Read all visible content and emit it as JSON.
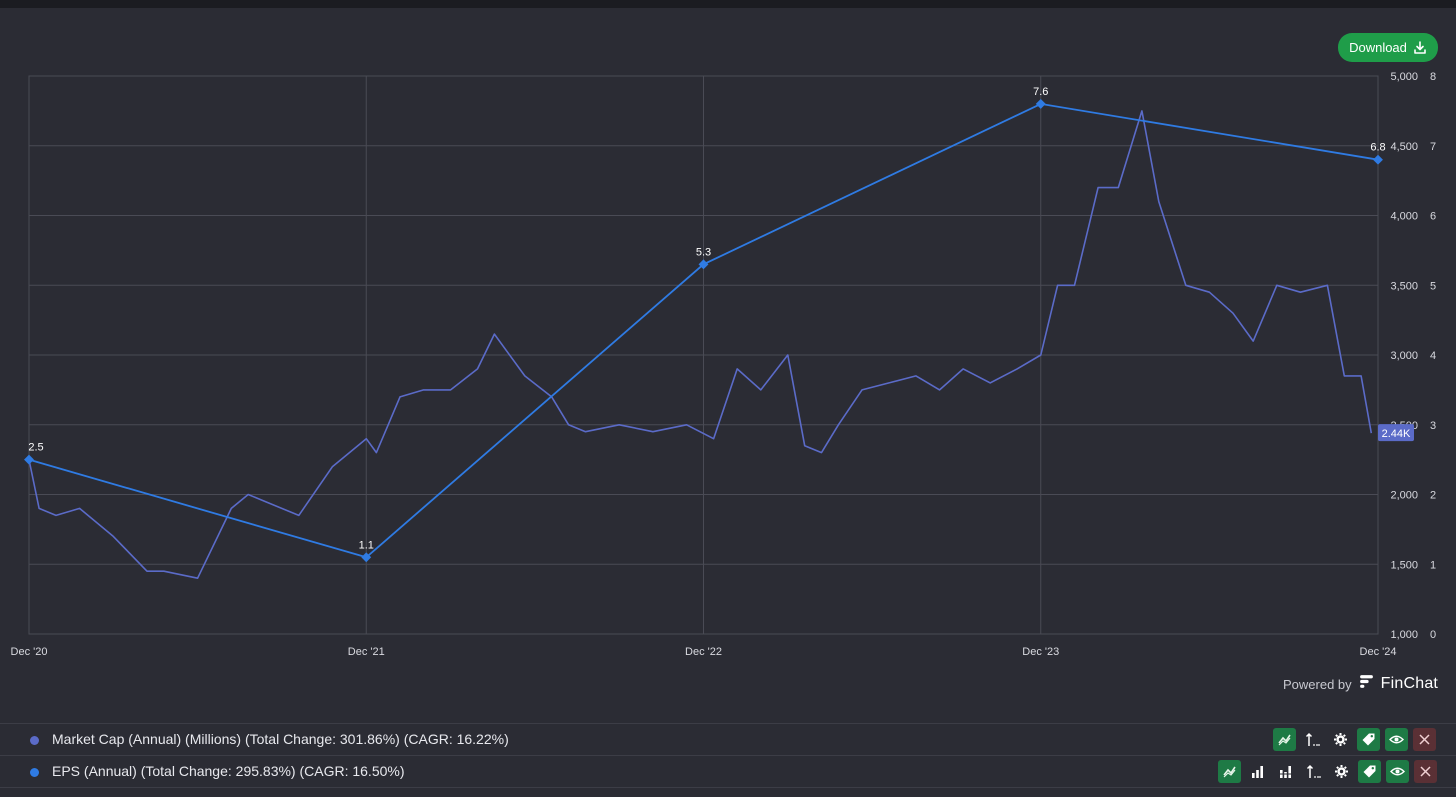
{
  "toolbar": {
    "download_label": "Download"
  },
  "chart_data": {
    "type": "line",
    "x_ticks": [
      "Dec '20",
      "Dec '21",
      "Dec '22",
      "Dec '23",
      "Dec '24"
    ],
    "y_left_range": [
      1000,
      5000
    ],
    "y_left_ticks": [
      "1,000",
      "1,500",
      "2,000",
      "2,500",
      "3,000",
      "3,500",
      "4,000",
      "4,500",
      "5,000"
    ],
    "y_right_range": [
      0,
      8
    ],
    "y_right_ticks": [
      "0",
      "1",
      "2",
      "3",
      "4",
      "5",
      "6",
      "7",
      "8"
    ],
    "grid": true,
    "series": [
      {
        "name": "Market Cap (Annual) (Millions) (Total Change: 301.86%) (CAGR: 16.22%)",
        "axis": "left",
        "color": "#5b6bc8",
        "last_value_label": "2.44K",
        "x": [
          2020.95,
          2020.98,
          2021.03,
          2021.1,
          2021.2,
          2021.3,
          2021.35,
          2021.45,
          2021.55,
          2021.6,
          2021.65,
          2021.75,
          2021.85,
          2021.95,
          2021.98,
          2022.05,
          2022.12,
          2022.2,
          2022.28,
          2022.33,
          2022.42,
          2022.5,
          2022.55,
          2022.6,
          2022.7,
          2022.8,
          2022.9,
          2022.98,
          2023.05,
          2023.12,
          2023.2,
          2023.25,
          2023.3,
          2023.35,
          2023.42,
          2023.5,
          2023.58,
          2023.65,
          2023.72,
          2023.8,
          2023.88,
          2023.95,
          2024.0,
          2024.05,
          2024.12,
          2024.18,
          2024.25,
          2024.3,
          2024.38,
          2024.45,
          2024.52,
          2024.58,
          2024.65,
          2024.72,
          2024.8,
          2024.85,
          2024.9,
          2024.93
        ],
        "values": [
          2250,
          1900,
          1850,
          1900,
          1700,
          1450,
          1450,
          1400,
          1900,
          2000,
          1950,
          1850,
          2200,
          2400,
          2300,
          2700,
          2750,
          2750,
          2900,
          3150,
          2850,
          2700,
          2500,
          2450,
          2500,
          2450,
          2500,
          2400,
          2900,
          2750,
          3000,
          2350,
          2300,
          2500,
          2750,
          2800,
          2850,
          2750,
          2900,
          2800,
          2900,
          3000,
          3500,
          3500,
          4200,
          4200,
          4750,
          4100,
          3500,
          3450,
          3300,
          3100,
          3500,
          3450,
          3500,
          2850,
          2850,
          2440
        ]
      },
      {
        "name": "EPS (Annual) (Total Change: 295.83%) (CAGR: 16.50%)",
        "axis": "right",
        "color": "#2f7be3",
        "x": [
          2020.95,
          2021.95,
          2022.95,
          2023.95,
          2024.95
        ],
        "values": [
          2.5,
          1.1,
          5.3,
          7.6,
          6.8
        ],
        "labels": [
          "2.5",
          "1.1",
          "5.3",
          "7.6",
          "6.8"
        ]
      }
    ]
  },
  "footer": {
    "powered_by": "Powered by",
    "brand": "FinChat"
  },
  "legend": [
    {
      "label": "Market Cap (Annual) (Millions) (Total Change: 301.86%) (CAGR: 16.22%)",
      "color": "#5b6bc8",
      "tools": [
        "line-chart-icon",
        "axis-icon",
        "gear-icon",
        "tag-icon",
        "eye-icon",
        "close-icon"
      ]
    },
    {
      "label": "EPS (Annual) (Total Change: 295.83%) (CAGR: 16.50%)",
      "color": "#2f7be3",
      "tools": [
        "line-chart-icon",
        "bar-chart-icon",
        "stacked-bar-icon",
        "axis-icon",
        "gear-icon",
        "tag-icon",
        "eye-icon",
        "close-icon"
      ]
    }
  ]
}
